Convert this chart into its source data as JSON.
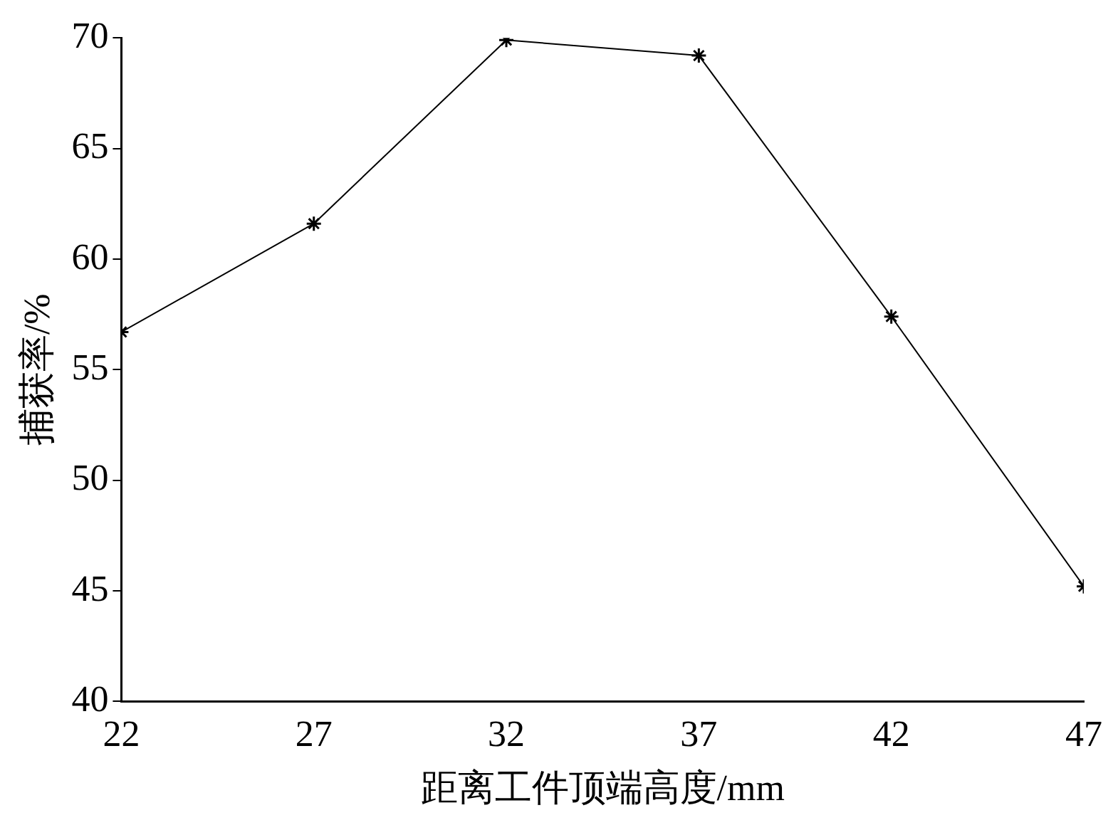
{
  "chart_data": {
    "type": "line",
    "xlabel": "距离工件顶端高度/mm",
    "ylabel": "捕获率/%",
    "x": [
      22,
      27,
      32,
      37,
      42,
      47
    ],
    "series": [
      {
        "color": "#000000",
        "values": [
          56.7,
          61.6,
          69.9,
          69.2,
          57.4,
          45.2
        ]
      }
    ],
    "xlim": [
      22,
      47
    ],
    "xticks": [
      22,
      27,
      32,
      37,
      42,
      47
    ],
    "ylim": [
      40,
      70
    ],
    "yticks": [
      40,
      45,
      50,
      55,
      60,
      65,
      70
    ],
    "grid": false,
    "legend": false,
    "marker": "cross",
    "line_style": "solid"
  }
}
